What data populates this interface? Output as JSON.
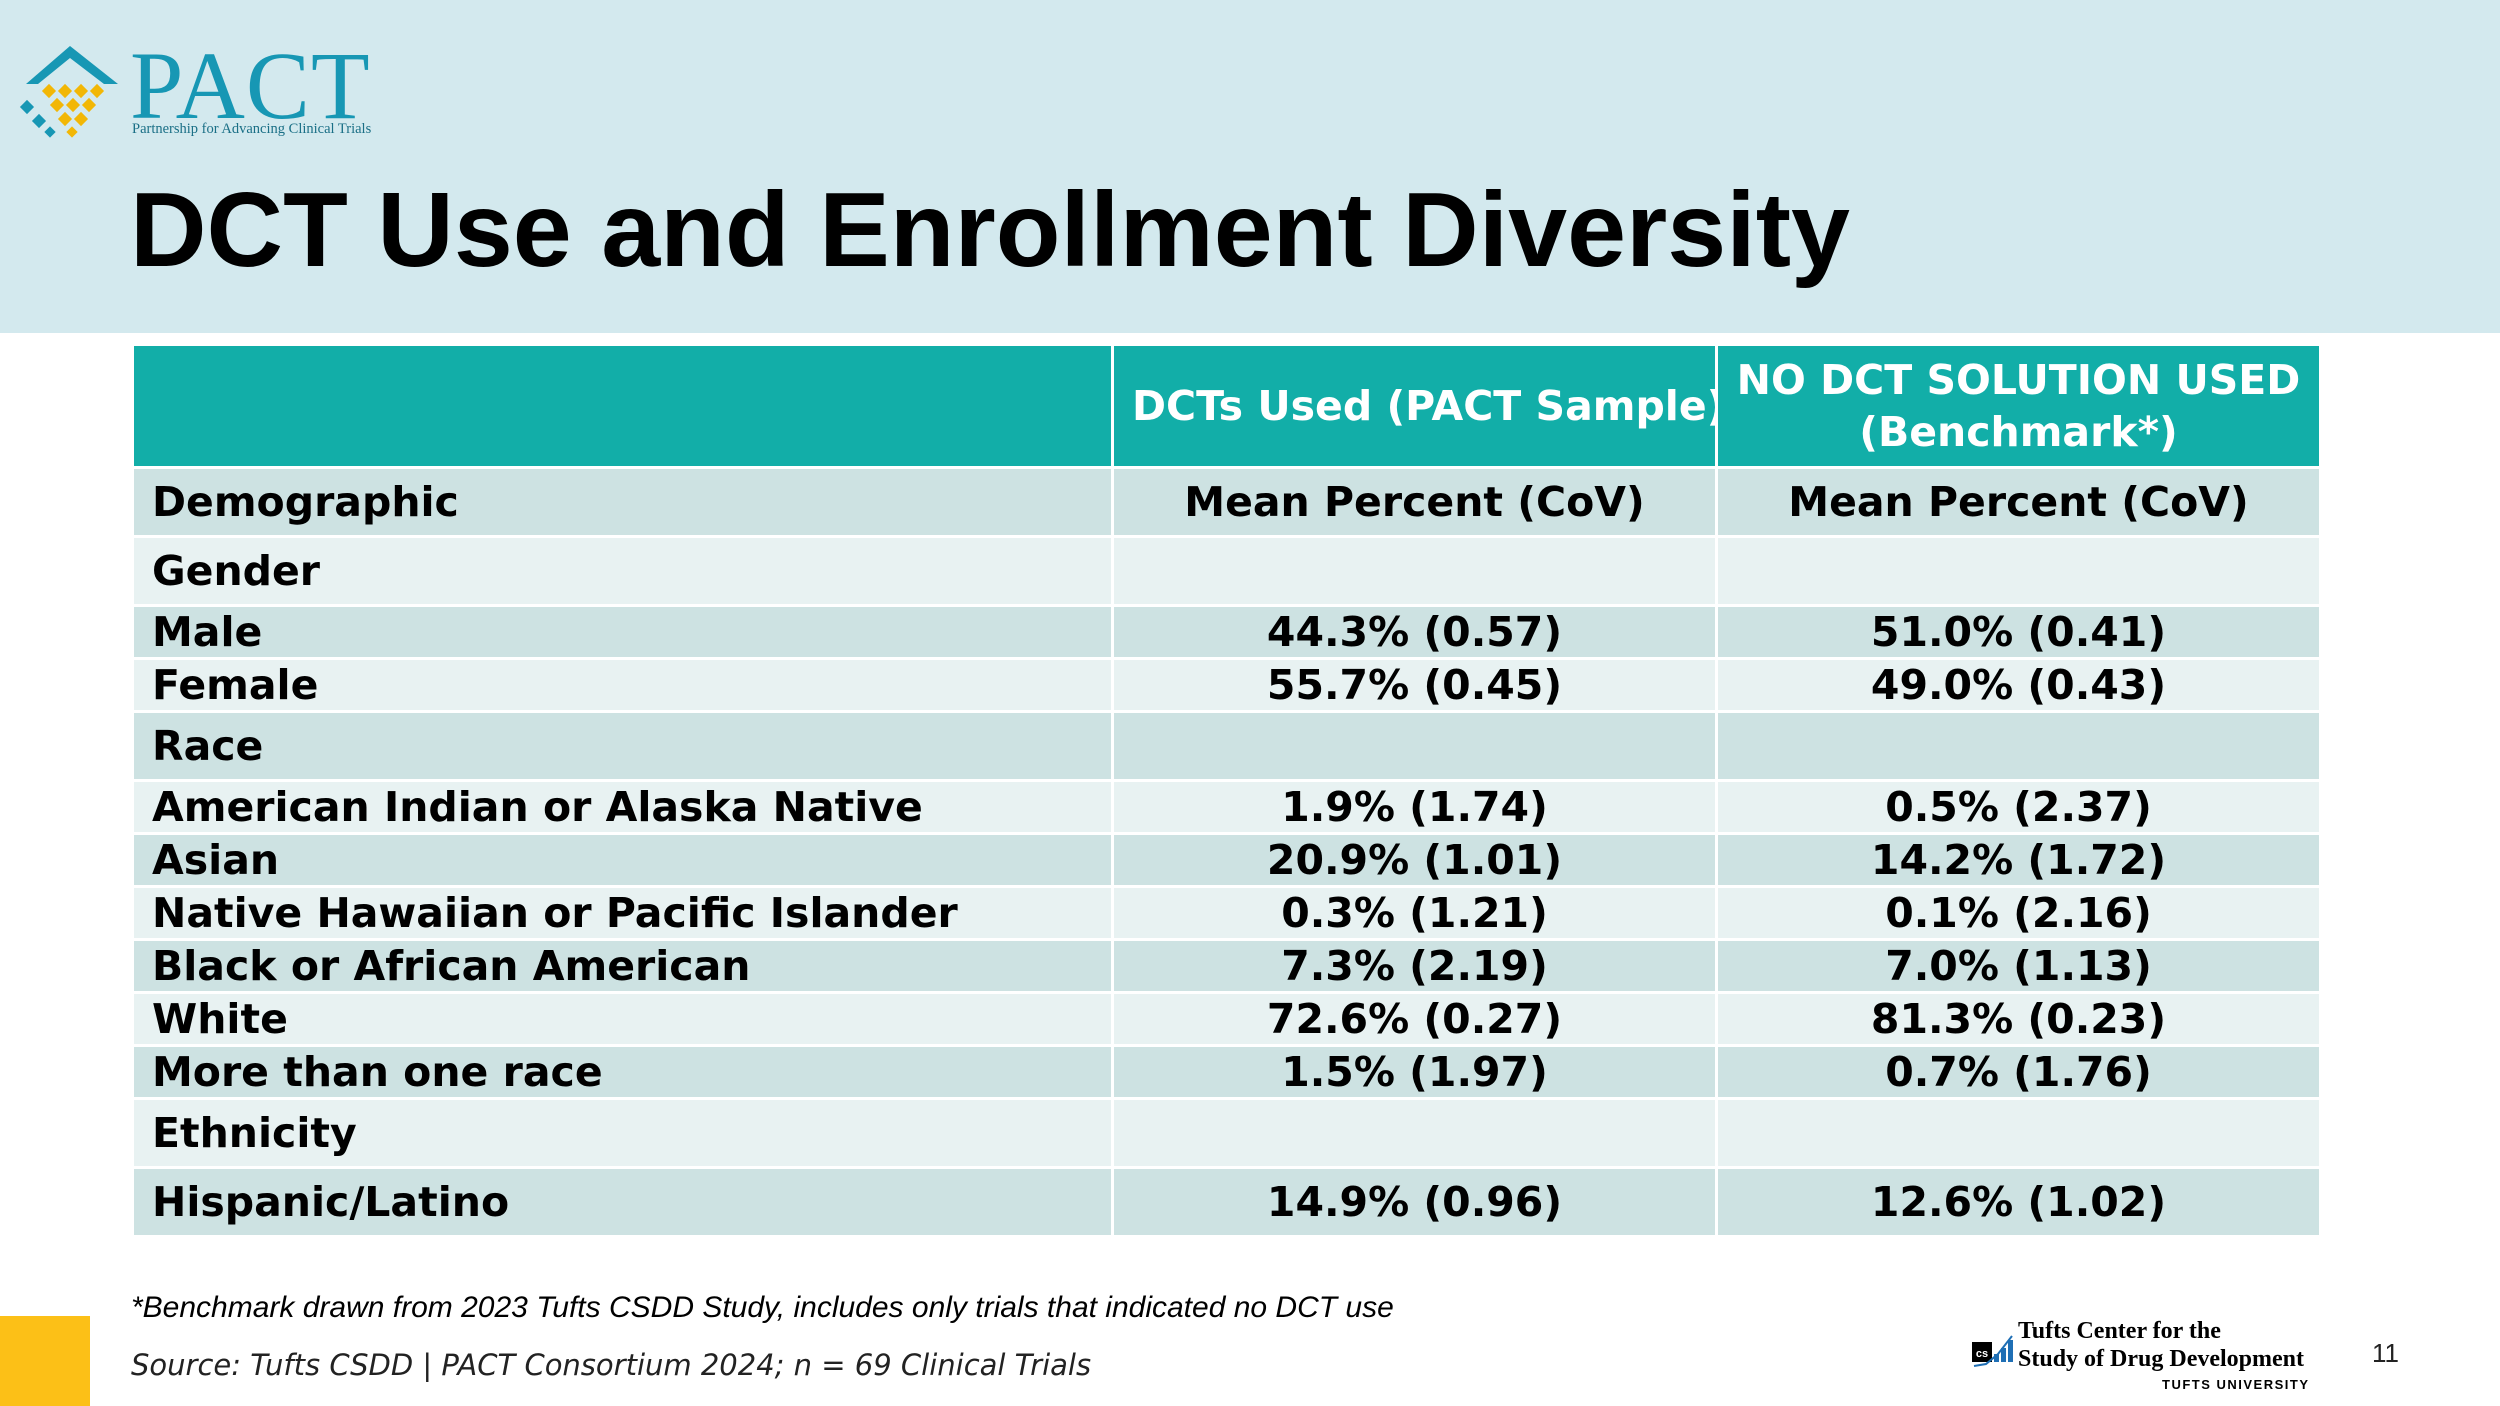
{
  "logo": {
    "word": "PACT",
    "tagline": "Partnership for Advancing Clinical Trials"
  },
  "title": "DCT Use and Enrollment Diversity",
  "table": {
    "header": {
      "col1": "",
      "col2": "DCTs Used (PACT Sample)",
      "col3_line1": "NO DCT SOLUTION USED",
      "col3_line2": "(Benchmark*)"
    },
    "subheader": {
      "col1": "Demographic",
      "col2": "Mean Percent (CoV)",
      "col3": "Mean Percent (CoV)"
    },
    "rows": [
      {
        "label": "Gender",
        "dct": "",
        "bench": ""
      },
      {
        "label": "Male",
        "dct": "44.3% (0.57)",
        "bench": "51.0% (0.41)"
      },
      {
        "label": "Female",
        "dct": "55.7% (0.45)",
        "bench": "49.0% (0.43)"
      },
      {
        "label": "Race",
        "dct": "",
        "bench": ""
      },
      {
        "label": "American Indian or Alaska Native",
        "dct": "1.9% (1.74)",
        "bench": "0.5% (2.37)"
      },
      {
        "label": "Asian",
        "dct": "20.9% (1.01)",
        "bench": "14.2% (1.72)"
      },
      {
        "label": "Native Hawaiian or Pacific Islander",
        "dct": "0.3% (1.21)",
        "bench": "0.1% (2.16)"
      },
      {
        "label": "Black or African American",
        "dct": "7.3% (2.19)",
        "bench": "7.0% (1.13)"
      },
      {
        "label": "White",
        "dct": "72.6% (0.27)",
        "bench": "81.3% (0.23)"
      },
      {
        "label": "More than one race",
        "dct": "1.5% (1.97)",
        "bench": "0.7% (1.76)"
      },
      {
        "label": "Ethnicity",
        "dct": "",
        "bench": ""
      },
      {
        "label": "Hispanic/Latino",
        "dct": "14.9% (0.96)",
        "bench": "12.6% (1.02)"
      }
    ]
  },
  "footnote": "*Benchmark drawn from 2023 Tufts CSDD Study, includes only trials that indicated no DCT use",
  "source": "Source: Tufts CSDD | PACT Consortium 2024; n = 69 Clinical Trials",
  "tufts": {
    "line1": "Tufts Center for the",
    "line2": "Study of Drug Development",
    "line3": "TUFTS UNIVERSITY"
  },
  "page_number": "11",
  "colors": {
    "header_band": "#d3e9ee",
    "table_header": "#12aea8",
    "row_dark": "#cde2e2",
    "row_light": "#e8f2f2",
    "accent_yellow": "#fcc017",
    "logo_teal": "#1797b4"
  }
}
